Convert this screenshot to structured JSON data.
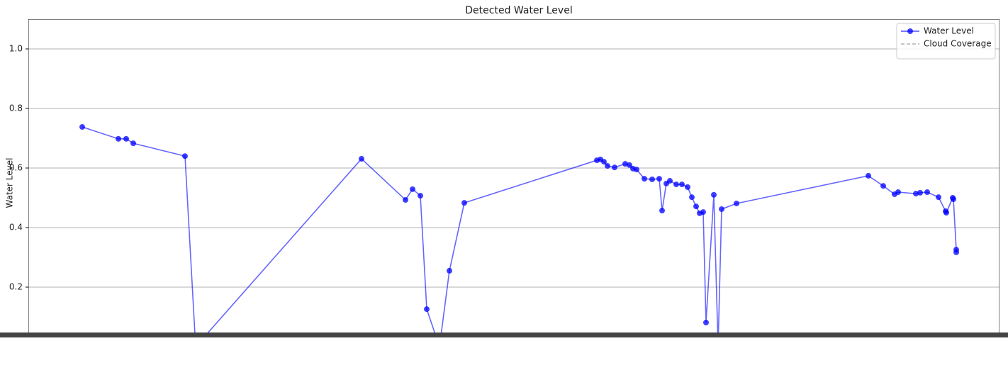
{
  "chart_data": {
    "type": "line",
    "title": "Detected Water Level",
    "ylabel": "Water Level",
    "x": [
      116,
      167,
      178,
      188,
      261,
      276,
      510,
      572,
      582,
      593,
      602,
      620,
      634,
      655,
      842,
      847,
      852,
      857,
      867,
      882,
      888,
      893,
      898,
      909,
      920,
      930,
      934,
      940,
      945,
      954,
      962,
      970,
      976,
      982,
      987,
      992,
      996,
      1007,
      1013,
      1018,
      1039,
      1225,
      1246,
      1262,
      1267,
      1292,
      1298,
      1308,
      1324,
      1334,
      1335,
      1344,
      1345,
      1349,
      1349
    ],
    "xlim": [
      40,
      1410
    ],
    "ylim": [
      0,
      1.1
    ],
    "yticks": [
      0.2,
      0.4,
      0.6,
      0.8,
      {
        "value": 1.0,
        "label": "1.0"
      }
    ],
    "grid": true,
    "legend": "upper right",
    "series": [
      {
        "name": "Water Level",
        "color": "#0000ff",
        "style": "solid",
        "marker": true,
        "values": [
          0.738,
          0.698,
          0.698,
          0.683,
          0.64,
          0.0,
          0.631,
          0.493,
          0.529,
          0.507,
          0.126,
          0.0,
          0.255,
          0.483,
          0.626,
          0.629,
          0.621,
          0.607,
          0.602,
          0.614,
          0.61,
          0.598,
          0.595,
          0.564,
          0.562,
          0.564,
          0.457,
          0.548,
          0.557,
          0.545,
          0.545,
          0.536,
          0.502,
          0.471,
          0.448,
          0.452,
          0.081,
          0.51,
          0.0,
          0.462,
          0.481,
          0.574,
          0.54,
          0.512,
          0.519,
          0.514,
          0.517,
          0.519,
          0.502,
          0.455,
          0.45,
          0.5,
          0.495,
          0.326,
          0.317
        ]
      },
      {
        "name": "Cloud Coverage",
        "color": "#808080",
        "style": "dashed",
        "marker": false,
        "values": [
          null,
          null,
          null,
          null,
          null,
          null,
          null,
          null,
          null,
          null,
          null,
          null,
          null,
          null,
          null,
          null,
          null,
          null,
          null,
          null,
          null,
          null,
          null,
          null,
          null,
          null,
          null,
          null,
          null,
          null,
          null,
          null,
          null,
          null,
          null,
          null,
          null,
          null,
          null,
          null,
          null,
          null,
          null,
          null,
          null,
          null,
          null,
          null,
          null,
          null,
          null,
          null,
          null,
          null,
          null
        ]
      }
    ]
  }
}
